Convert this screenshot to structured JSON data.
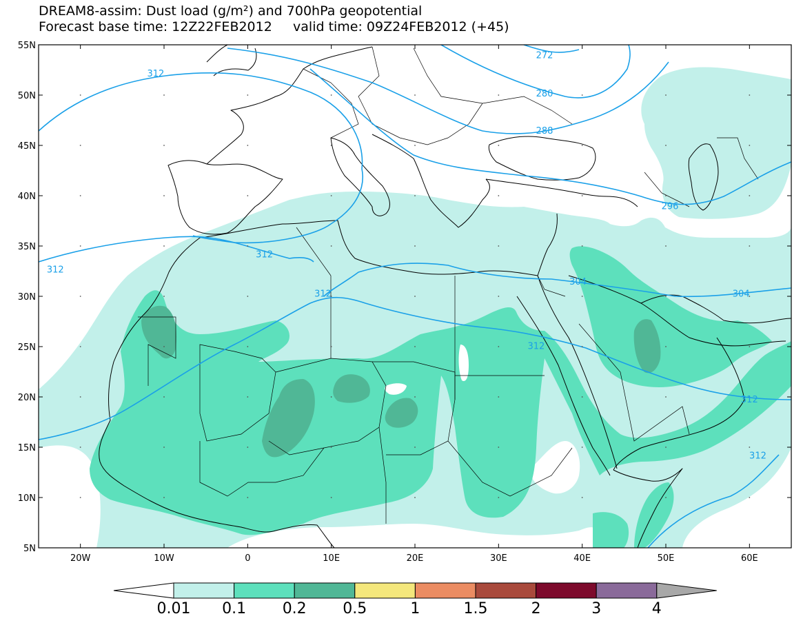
{
  "title": {
    "line1": "DREAM8-assim: Dust load (g/m²) and 700hPa geopotential",
    "line2": "Forecast base time: 12Z22FEB2012     valid time: 09Z24FEB2012 (+45)"
  },
  "map": {
    "lon_range": [
      -25,
      65
    ],
    "lat_range": [
      5,
      55
    ],
    "lat_ticks": [
      {
        "lat": 55,
        "label": "55N"
      },
      {
        "lat": 50,
        "label": "50N"
      },
      {
        "lat": 45,
        "label": "45N"
      },
      {
        "lat": 40,
        "label": "40N"
      },
      {
        "lat": 35,
        "label": "35N"
      },
      {
        "lat": 30,
        "label": "30N"
      },
      {
        "lat": 25,
        "label": "25N"
      },
      {
        "lat": 20,
        "label": "20N"
      },
      {
        "lat": 15,
        "label": "15N"
      },
      {
        "lat": 10,
        "label": "10N"
      },
      {
        "lat": 5,
        "label": "5N"
      }
    ],
    "lon_ticks": [
      {
        "lon": -20,
        "label": "20W"
      },
      {
        "lon": -10,
        "label": "10W"
      },
      {
        "lon": 0,
        "label": "0"
      },
      {
        "lon": 10,
        "label": "10E"
      },
      {
        "lon": 20,
        "label": "20E"
      },
      {
        "lon": 30,
        "label": "30E"
      },
      {
        "lon": 40,
        "label": "40E"
      },
      {
        "lon": 50,
        "label": "50E"
      },
      {
        "lon": 60,
        "label": "60E"
      }
    ],
    "contour_labels": [
      {
        "text": "272",
        "lon": 35.5,
        "lat": 54.0
      },
      {
        "text": "280",
        "lon": 35.5,
        "lat": 50.2
      },
      {
        "text": "288",
        "lon": 35.5,
        "lat": 46.5
      },
      {
        "text": "296",
        "lon": 50.5,
        "lat": 39.0
      },
      {
        "text": "304",
        "lon": 39.5,
        "lat": 31.5
      },
      {
        "text": "304",
        "lon": 59.0,
        "lat": 30.3
      },
      {
        "text": "312",
        "lon": -11.0,
        "lat": 52.2
      },
      {
        "text": "312",
        "lon": -23.0,
        "lat": 32.7
      },
      {
        "text": "312",
        "lon": 2.0,
        "lat": 34.2
      },
      {
        "text": "312",
        "lon": 9.0,
        "lat": 30.3
      },
      {
        "text": "312",
        "lon": 34.5,
        "lat": 25.1
      },
      {
        "text": "312",
        "lon": 60.0,
        "lat": 19.8
      },
      {
        "text": "312",
        "lon": 61.0,
        "lat": 14.2
      }
    ],
    "contour_color": "#1aa0e8"
  },
  "legend": {
    "bins": [
      {
        "label": "0.01",
        "color": "#c2f0ea"
      },
      {
        "label": "0.1",
        "color": "#5de0bc"
      },
      {
        "label": "0.2",
        "color": "#50b796"
      },
      {
        "label": "0.5",
        "color": "#f4e77c"
      },
      {
        "label": "1",
        "color": "#eb8c62"
      },
      {
        "label": "1.5",
        "color": "#a94a3c"
      },
      {
        "label": "2",
        "color": "#7d0a2c"
      },
      {
        "label": "3",
        "color": "#8a6a9a"
      },
      {
        "label": "4",
        "color": "#a8a8a8"
      }
    ],
    "under_color": "#ffffff",
    "over_color": "#a8a8a8"
  }
}
